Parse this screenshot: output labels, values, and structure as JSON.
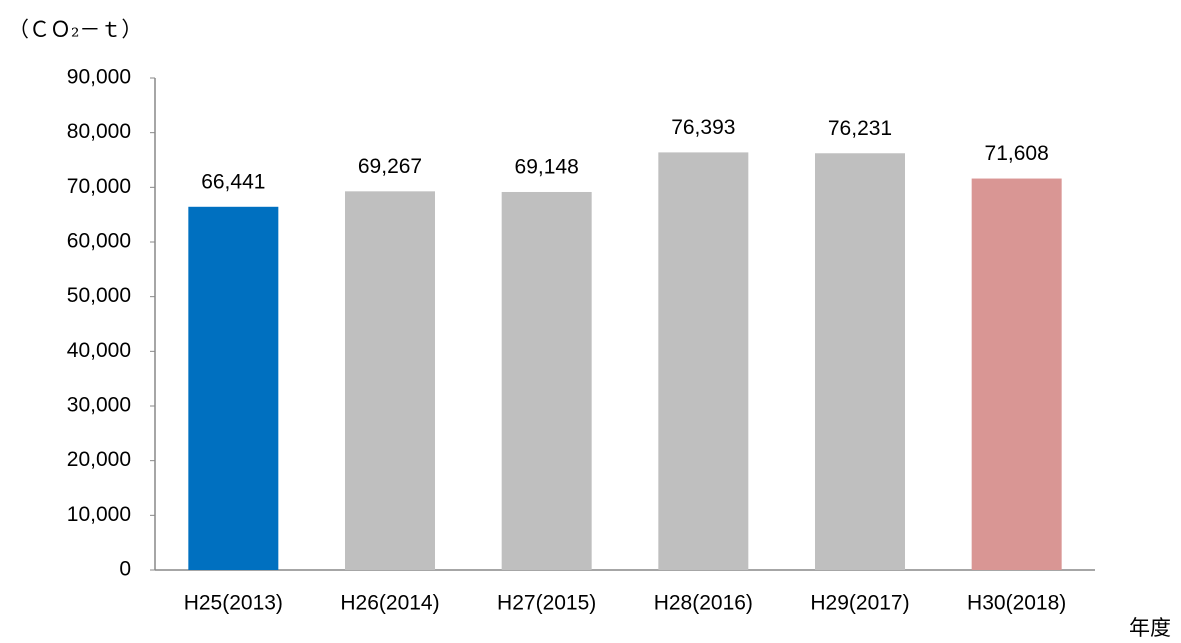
{
  "chart_data": {
    "type": "bar",
    "y_axis_label": "（ＣＯ₂－ｔ）",
    "x_axis_label": "年度",
    "categories": [
      "H25(2013)",
      "H26(2014)",
      "H27(2015)",
      "H28(2016)",
      "H29(2017)",
      "H30(2018)"
    ],
    "values": [
      66441,
      69267,
      69148,
      76393,
      76231,
      71608
    ],
    "value_labels": [
      "66,441",
      "69,267",
      "69,148",
      "76,393",
      "76,231",
      "71,608"
    ],
    "colors": [
      "#0070c0",
      "#bfbfbf",
      "#bfbfbf",
      "#bfbfbf",
      "#bfbfbf",
      "#d99694"
    ],
    "ylim": [
      0,
      90000
    ],
    "yticks": [
      0,
      {
        "value": 10000,
        "label": "10,000"
      },
      {
        "value": 20000,
        "label": "20,000"
      },
      {
        "value": 30000,
        "label": "30,000"
      },
      {
        "value": 40000,
        "label": "40,000"
      },
      {
        "value": 50000,
        "label": "50,000"
      },
      {
        "value": 60000,
        "label": "60,000"
      },
      {
        "value": 70000,
        "label": "70,000"
      },
      {
        "value": 80000,
        "label": "80,000"
      },
      {
        "value": 90000,
        "label": "90,000"
      }
    ],
    "grid": false
  }
}
